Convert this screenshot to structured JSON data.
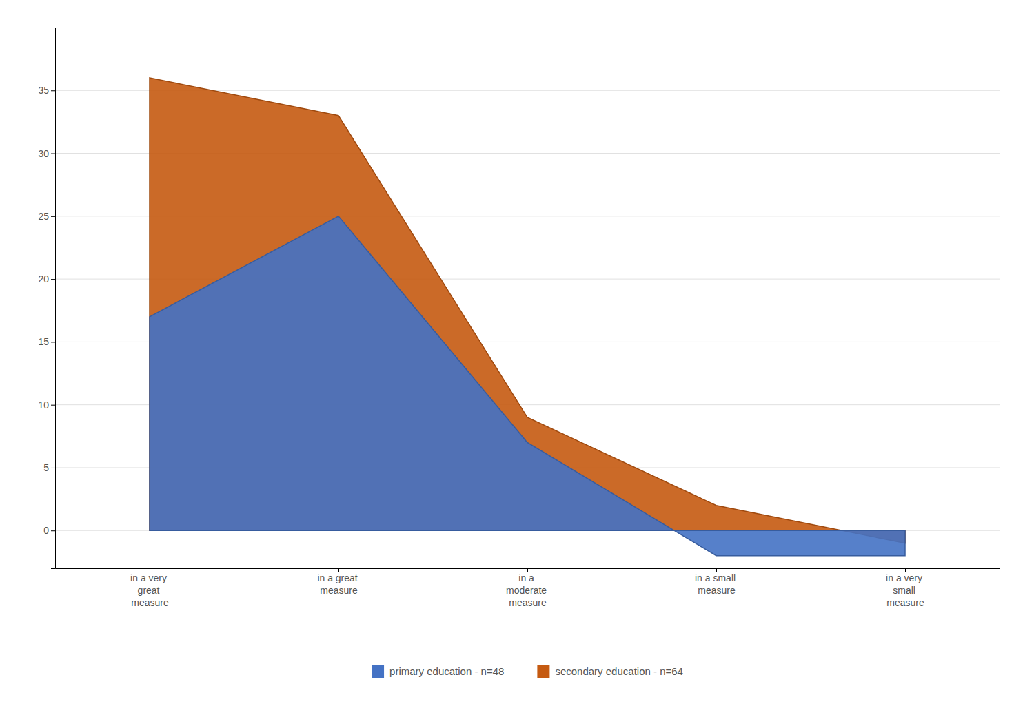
{
  "chart_data": {
    "type": "area",
    "categories": [
      "in a very\ngreat\nmeasure",
      "in a great\nmeasure",
      "in a\nmoderate\nmeasure",
      "in a small\nmeasure",
      "in a very\nsmall\nmeasure"
    ],
    "series": [
      {
        "name": "primary education - n=48",
        "color": "#4472C4",
        "values": [
          17,
          25,
          7,
          -2,
          -2
        ]
      },
      {
        "name": "secondary education - n=64",
        "color": "#C55A11",
        "values": [
          36,
          33,
          9,
          2,
          -1
        ]
      }
    ],
    "ylim": [
      -3,
      40
    ],
    "yticks": [
      0,
      5,
      10,
      15,
      20,
      25,
      30,
      35
    ],
    "grid": true,
    "legend": "bottom"
  }
}
